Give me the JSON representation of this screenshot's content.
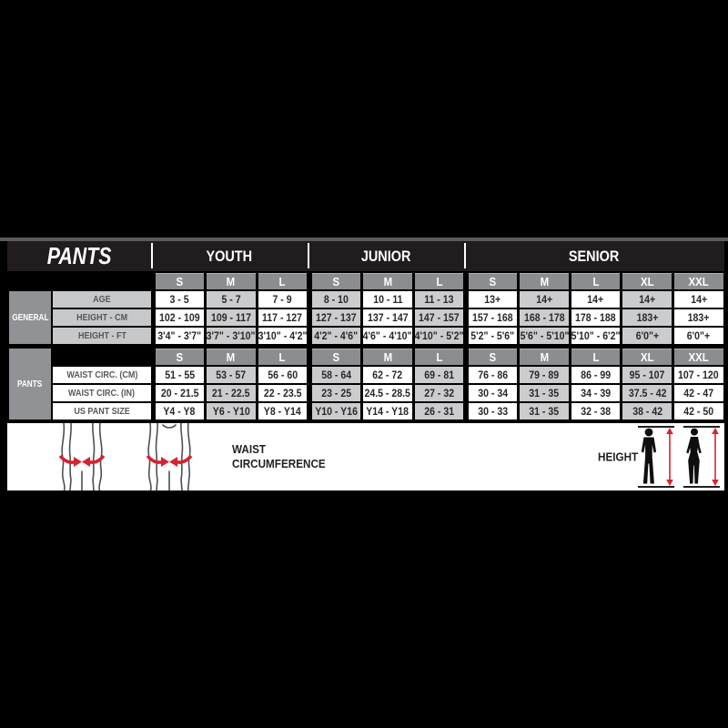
{
  "title": "PANTS",
  "groups": [
    {
      "label": "YOUTH"
    },
    {
      "label": "JUNIOR"
    },
    {
      "label": "SENIOR"
    }
  ],
  "size_columns": [
    "S",
    "M",
    "L",
    "S",
    "M",
    "L",
    "S",
    "M",
    "L",
    "XL",
    "XXL"
  ],
  "sections": [
    {
      "rail": "GENERAL",
      "rows": [
        {
          "label": "AGE",
          "values": [
            "3 - 5",
            "5 - 7",
            "7 - 9",
            "8 - 10",
            "10 - 11",
            "11 - 13",
            "13+",
            "14+",
            "14+",
            "14+",
            "14+"
          ]
        },
        {
          "label": "HEIGHT - CM",
          "values": [
            "102 - 109",
            "109 - 117",
            "117 - 127",
            "127 - 137",
            "137 - 147",
            "147 - 157",
            "157 - 168",
            "168 - 178",
            "178 - 188",
            "183+",
            "183+"
          ]
        },
        {
          "label": "HEIGHT - FT",
          "values": [
            "3'4\" - 3'7\"",
            "3'7\" - 3'10\"",
            "3'10\" - 4'2\"",
            "4'2\" - 4'6\"",
            "4'6\" - 4'10\"",
            "4'10\" - 5'2\"",
            "5'2\" - 5'6\"",
            "5'6\" - 5'10\"",
            "5'10\" - 6'2\"",
            "6'0\"+",
            "6'0\"+"
          ]
        }
      ]
    },
    {
      "rail": "PANTS",
      "rows": [
        {
          "label": "WAIST CIRC. (CM)",
          "values": [
            "51 - 55",
            "53 - 57",
            "56 - 60",
            "58 - 64",
            "62 - 72",
            "69 - 81",
            "76 - 86",
            "79 - 89",
            "86 - 99",
            "95 - 107",
            "107 - 120"
          ]
        },
        {
          "label": "WAIST CIRC. (IN)",
          "values": [
            "20 - 21.5",
            "21 - 22.5",
            "22 - 23.5",
            "23 - 25",
            "24.5 - 28.5",
            "27 - 32",
            "30 - 34",
            "31 - 35",
            "34 - 39",
            "37.5 - 42",
            "42 - 47"
          ]
        },
        {
          "label": "US PANT SIZE",
          "values": [
            "Y4 - Y8",
            "Y6 - Y10",
            "Y8 - Y14",
            "Y10 - Y16",
            "Y14 - Y18",
            "26 - 31",
            "30 - 33",
            "31 - 35",
            "32 - 38",
            "38 - 42",
            "42 - 50"
          ]
        }
      ]
    }
  ],
  "legend": {
    "waist_line1": "WAIST",
    "waist_line2": "CIRCUMFERENCE",
    "height_label": "HEIGHT"
  },
  "colors": {
    "accent_red": "#d6232f",
    "subheader_gray": "#8b8d90",
    "alt_cell_gray": "#cbccce",
    "rail_gray": "#909295",
    "label_cell_gray": "#c7c8ca",
    "header_bg": "#211d1e",
    "text_dark": "#2b2728"
  }
}
